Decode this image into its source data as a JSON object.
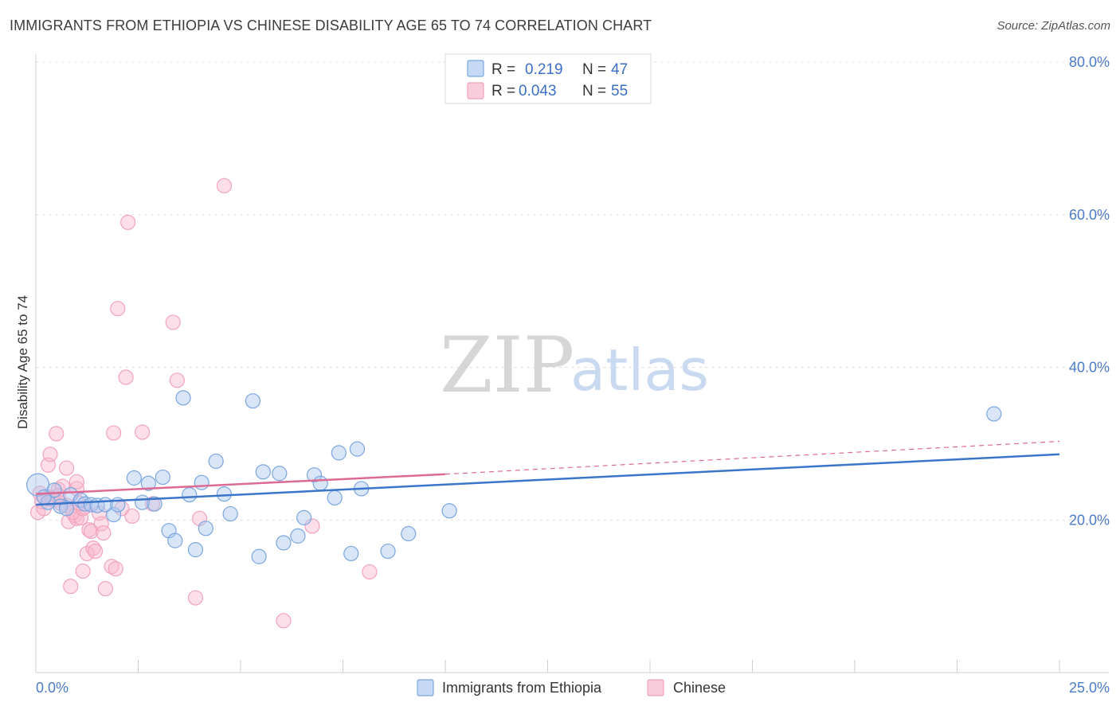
{
  "header": {
    "title": "IMMIGRANTS FROM ETHIOPIA VS CHINESE DISABILITY AGE 65 TO 74 CORRELATION CHART",
    "source": "Source: ZipAtlas.com"
  },
  "watermark": {
    "zip": "ZIP",
    "atlas": "atlas"
  },
  "chart_data": {
    "type": "scatter",
    "title": "IMMIGRANTS FROM ETHIOPIA VS CHINESE DISABILITY AGE 65 TO 74 CORRELATION CHART",
    "xlabel": "",
    "ylabel": "Disability Age 65 to 74",
    "xlim": [
      0,
      25
    ],
    "ylim": [
      0,
      80
    ],
    "x_ticks": [
      "0.0%",
      "25.0%"
    ],
    "y_ticks": [
      "20.0%",
      "40.0%",
      "60.0%",
      "80.0%"
    ],
    "y_tick_values": [
      20,
      40,
      60,
      80
    ],
    "grid": true,
    "legend_placement": "top-center",
    "legend": [
      {
        "r_label": "R =",
        "r_value": "0.219",
        "n_label": "N =",
        "n_value": "47"
      },
      {
        "r_label": "R =",
        "r_value": "0.043",
        "n_label": "N =",
        "n_value": "55"
      }
    ],
    "series": [
      {
        "name": "Immigrants from Ethiopia",
        "color": "#7aa6e0",
        "line_color": "#3a75c9",
        "trend": {
          "x": [
            0,
            25
          ],
          "y": [
            22.0,
            28.6
          ]
        },
        "points": [
          [
            0.05,
            24.6
          ],
          [
            0.3,
            22.3
          ],
          [
            0.45,
            23.9
          ],
          [
            0.6,
            21.8
          ],
          [
            0.75,
            21.5
          ],
          [
            0.85,
            23.3
          ],
          [
            1.1,
            22.6
          ],
          [
            1.2,
            22.1
          ],
          [
            1.35,
            22.0
          ],
          [
            1.5,
            21.9
          ],
          [
            1.7,
            22.0
          ],
          [
            1.9,
            20.7
          ],
          [
            2.0,
            22.0
          ],
          [
            2.4,
            25.5
          ],
          [
            2.6,
            22.3
          ],
          [
            2.75,
            24.8
          ],
          [
            2.9,
            22.1
          ],
          [
            3.1,
            25.6
          ],
          [
            3.25,
            18.6
          ],
          [
            3.4,
            17.3
          ],
          [
            3.6,
            36.0
          ],
          [
            3.75,
            23.3
          ],
          [
            3.9,
            16.1
          ],
          [
            4.05,
            24.9
          ],
          [
            4.15,
            18.9
          ],
          [
            4.4,
            27.7
          ],
          [
            4.6,
            23.4
          ],
          [
            4.75,
            20.8
          ],
          [
            5.3,
            35.6
          ],
          [
            5.45,
            15.2
          ],
          [
            5.55,
            26.3
          ],
          [
            5.95,
            26.1
          ],
          [
            6.05,
            17.0
          ],
          [
            6.4,
            17.9
          ],
          [
            6.55,
            20.3
          ],
          [
            6.8,
            25.9
          ],
          [
            6.95,
            24.8
          ],
          [
            7.3,
            22.9
          ],
          [
            7.4,
            28.8
          ],
          [
            7.7,
            15.6
          ],
          [
            7.85,
            29.3
          ],
          [
            7.95,
            24.1
          ],
          [
            8.6,
            15.9
          ],
          [
            9.1,
            18.2
          ],
          [
            10.1,
            21.2
          ],
          [
            23.4,
            33.9
          ],
          [
            0.2,
            23.0
          ]
        ]
      },
      {
        "name": "Chinese",
        "color": "#f2a3bd",
        "line_color": "#dd6a95",
        "trend": {
          "x": [
            0,
            10
          ],
          "y": [
            23.4,
            26.0
          ]
        },
        "trend_dashed": {
          "x": [
            10,
            25
          ],
          "y": [
            26.0,
            30.3
          ]
        },
        "points": [
          [
            0.05,
            21.0
          ],
          [
            0.1,
            23.5
          ],
          [
            0.2,
            21.5
          ],
          [
            0.3,
            23.0
          ],
          [
            0.3,
            27.2
          ],
          [
            0.35,
            28.6
          ],
          [
            0.45,
            22.6
          ],
          [
            0.5,
            31.3
          ],
          [
            0.55,
            24.0
          ],
          [
            0.6,
            22.2
          ],
          [
            0.65,
            24.4
          ],
          [
            0.75,
            21.9
          ],
          [
            0.75,
            26.8
          ],
          [
            0.8,
            19.8
          ],
          [
            0.85,
            11.3
          ],
          [
            0.95,
            20.6
          ],
          [
            1.0,
            20.2
          ],
          [
            1.0,
            24.1
          ],
          [
            1.0,
            25.0
          ],
          [
            1.1,
            20.3
          ],
          [
            1.15,
            13.3
          ],
          [
            1.2,
            21.7
          ],
          [
            1.25,
            15.6
          ],
          [
            1.3,
            18.7
          ],
          [
            1.35,
            18.5
          ],
          [
            1.4,
            16.3
          ],
          [
            1.45,
            15.9
          ],
          [
            1.55,
            20.9
          ],
          [
            1.6,
            19.5
          ],
          [
            1.65,
            18.3
          ],
          [
            1.7,
            11.0
          ],
          [
            1.85,
            13.9
          ],
          [
            1.9,
            31.4
          ],
          [
            1.95,
            13.6
          ],
          [
            2.0,
            47.7
          ],
          [
            2.1,
            21.5
          ],
          [
            2.2,
            38.7
          ],
          [
            2.25,
            59.0
          ],
          [
            2.35,
            20.5
          ],
          [
            2.6,
            31.5
          ],
          [
            2.85,
            22.1
          ],
          [
            3.35,
            45.9
          ],
          [
            3.45,
            38.3
          ],
          [
            3.9,
            9.8
          ],
          [
            4.0,
            20.2
          ],
          [
            4.6,
            63.8
          ],
          [
            6.05,
            6.8
          ],
          [
            6.75,
            19.2
          ],
          [
            8.15,
            13.2
          ],
          [
            0.15,
            22.4
          ],
          [
            0.4,
            22.8
          ],
          [
            0.55,
            23.2
          ],
          [
            0.9,
            21.0
          ],
          [
            1.15,
            21.5
          ],
          [
            1.05,
            22.2
          ]
        ]
      }
    ]
  }
}
